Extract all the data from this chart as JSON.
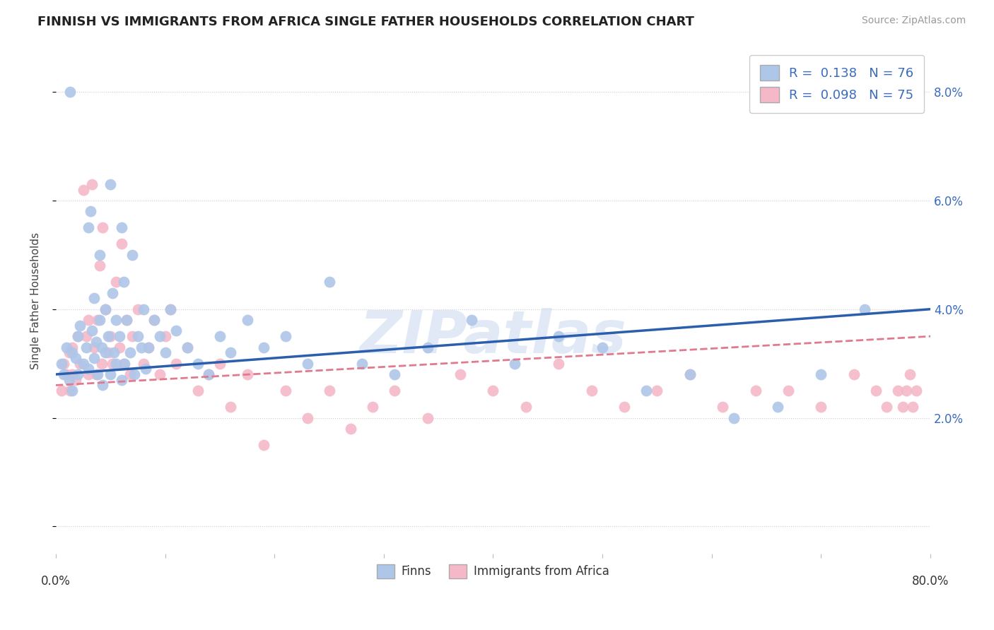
{
  "title": "FINNISH VS IMMIGRANTS FROM AFRICA SINGLE FATHER HOUSEHOLDS CORRELATION CHART",
  "source": "Source: ZipAtlas.com",
  "ylabel": "Single Father Households",
  "xlim": [
    0.0,
    0.8
  ],
  "ylim": [
    -0.005,
    0.088
  ],
  "finns_color": "#aec6e8",
  "africa_color": "#f4b8c8",
  "finns_line_color": "#2b5fad",
  "africa_line_color": "#e07a8f",
  "watermark": "ZIPatlas",
  "finns_R": 0.138,
  "africa_R": 0.098,
  "finns_N": 76,
  "africa_N": 75,
  "finns_x": [
    0.005,
    0.007,
    0.01,
    0.012,
    0.013,
    0.015,
    0.015,
    0.018,
    0.02,
    0.02,
    0.022,
    0.025,
    0.028,
    0.03,
    0.03,
    0.032,
    0.033,
    0.035,
    0.035,
    0.037,
    0.038,
    0.04,
    0.04,
    0.042,
    0.043,
    0.045,
    0.045,
    0.048,
    0.05,
    0.05,
    0.052,
    0.053,
    0.055,
    0.055,
    0.058,
    0.06,
    0.06,
    0.062,
    0.063,
    0.065,
    0.068,
    0.07,
    0.072,
    0.075,
    0.078,
    0.08,
    0.082,
    0.085,
    0.09,
    0.095,
    0.1,
    0.105,
    0.11,
    0.12,
    0.13,
    0.14,
    0.15,
    0.16,
    0.175,
    0.19,
    0.21,
    0.23,
    0.25,
    0.28,
    0.31,
    0.34,
    0.38,
    0.42,
    0.46,
    0.5,
    0.54,
    0.58,
    0.62,
    0.66,
    0.7,
    0.74
  ],
  "finns_y": [
    0.03,
    0.028,
    0.033,
    0.027,
    0.08,
    0.032,
    0.025,
    0.031,
    0.035,
    0.028,
    0.037,
    0.03,
    0.033,
    0.055,
    0.029,
    0.058,
    0.036,
    0.031,
    0.042,
    0.034,
    0.028,
    0.038,
    0.05,
    0.033,
    0.026,
    0.04,
    0.032,
    0.035,
    0.063,
    0.028,
    0.043,
    0.032,
    0.038,
    0.03,
    0.035,
    0.055,
    0.027,
    0.045,
    0.03,
    0.038,
    0.032,
    0.05,
    0.028,
    0.035,
    0.033,
    0.04,
    0.029,
    0.033,
    0.038,
    0.035,
    0.032,
    0.04,
    0.036,
    0.033,
    0.03,
    0.028,
    0.035,
    0.032,
    0.038,
    0.033,
    0.035,
    0.03,
    0.045,
    0.03,
    0.028,
    0.033,
    0.038,
    0.03,
    0.035,
    0.033,
    0.025,
    0.028,
    0.02,
    0.022,
    0.028,
    0.04
  ],
  "africa_x": [
    0.005,
    0.007,
    0.01,
    0.012,
    0.013,
    0.015,
    0.015,
    0.018,
    0.02,
    0.022,
    0.025,
    0.028,
    0.03,
    0.03,
    0.033,
    0.035,
    0.037,
    0.038,
    0.04,
    0.042,
    0.043,
    0.045,
    0.048,
    0.05,
    0.052,
    0.055,
    0.058,
    0.06,
    0.062,
    0.065,
    0.068,
    0.07,
    0.075,
    0.08,
    0.085,
    0.09,
    0.095,
    0.1,
    0.105,
    0.11,
    0.12,
    0.13,
    0.14,
    0.15,
    0.16,
    0.175,
    0.19,
    0.21,
    0.23,
    0.25,
    0.27,
    0.29,
    0.31,
    0.34,
    0.37,
    0.4,
    0.43,
    0.46,
    0.49,
    0.52,
    0.55,
    0.58,
    0.61,
    0.64,
    0.67,
    0.7,
    0.73,
    0.75,
    0.76,
    0.77,
    0.775,
    0.778,
    0.781,
    0.784,
    0.787
  ],
  "africa_y": [
    0.025,
    0.03,
    0.028,
    0.032,
    0.025,
    0.033,
    0.028,
    0.027,
    0.035,
    0.03,
    0.062,
    0.035,
    0.038,
    0.028,
    0.063,
    0.033,
    0.028,
    0.038,
    0.048,
    0.03,
    0.055,
    0.04,
    0.032,
    0.035,
    0.03,
    0.045,
    0.033,
    0.052,
    0.03,
    0.038,
    0.028,
    0.035,
    0.04,
    0.03,
    0.033,
    0.038,
    0.028,
    0.035,
    0.04,
    0.03,
    0.033,
    0.025,
    0.028,
    0.03,
    0.022,
    0.028,
    0.015,
    0.025,
    0.02,
    0.025,
    0.018,
    0.022,
    0.025,
    0.02,
    0.028,
    0.025,
    0.022,
    0.03,
    0.025,
    0.022,
    0.025,
    0.028,
    0.022,
    0.025,
    0.025,
    0.022,
    0.028,
    0.025,
    0.022,
    0.025,
    0.022,
    0.025,
    0.028,
    0.022,
    0.025
  ]
}
